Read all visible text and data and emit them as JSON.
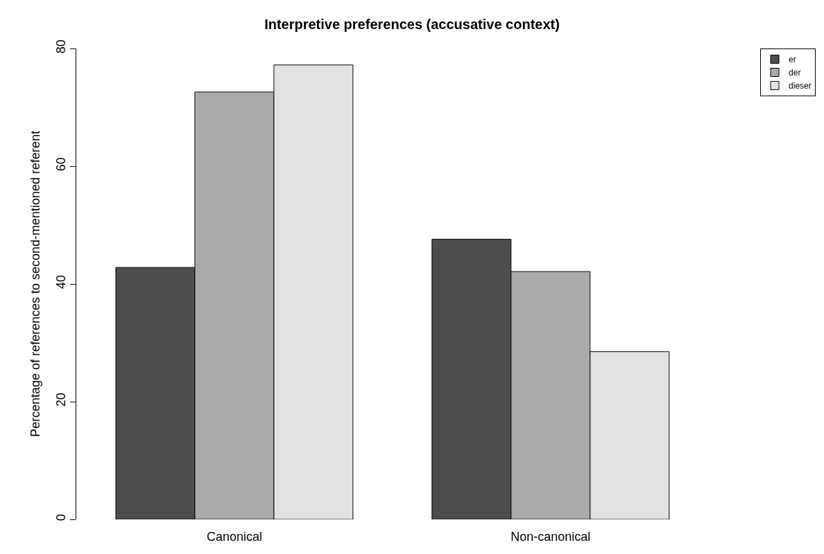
{
  "chart_data": {
    "type": "bar",
    "title": "Interpretive preferences (accusative context)",
    "ylabel": "Percentage of references to second-mentioned referent",
    "categories": [
      "Canonical",
      "Non-canonical"
    ],
    "series": [
      {
        "name": "er",
        "color": "#4d4d4d",
        "values": [
          42.8,
          47.6
        ]
      },
      {
        "name": "der",
        "color": "#aaaaaa",
        "values": [
          72.6,
          42.1
        ]
      },
      {
        "name": "dieser",
        "color": "#e2e2e2",
        "values": [
          77.2,
          28.5
        ]
      }
    ],
    "ylim": [
      0,
      80
    ],
    "yticks": [
      0,
      20,
      40,
      60,
      80
    ],
    "legend": "top right"
  }
}
